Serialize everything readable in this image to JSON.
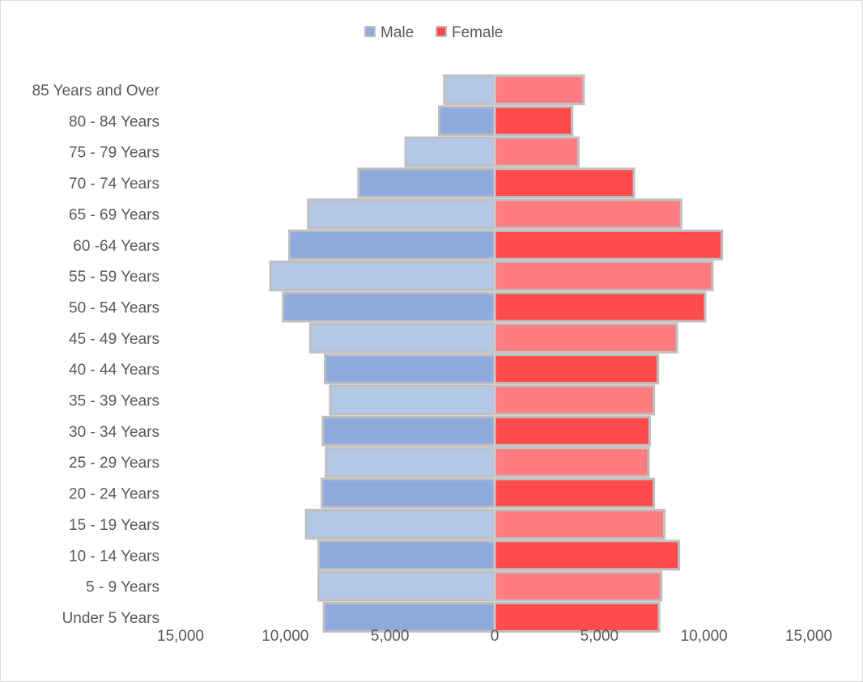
{
  "chart_data": {
    "type": "bar",
    "orientation": "horizontal",
    "categories": [
      "85 Years and Over",
      "80 - 84 Years",
      "75 - 79 Years",
      "70 - 74 Years",
      "65 - 69 Years",
      "60 -64 Years",
      "55 - 59 Years",
      "50 - 54 Years",
      "45 - 49 Years",
      "40 - 44 Years",
      "35 - 39 Years",
      "30 - 34 Years",
      "25 - 29 Years",
      "20 - 24 Years",
      "15 - 19 Years",
      "10 - 14 Years",
      "5 - 9 Years",
      "Under 5 Years"
    ],
    "series": [
      {
        "name": "Male",
        "color": "#8faadc",
        "alt_color": "#b4c7e7",
        "values": [
          2400,
          2650,
          4250,
          6500,
          8900,
          9800,
          10700,
          10100,
          8800,
          8100,
          7850,
          8200,
          8050,
          8250,
          9000,
          8400,
          8400,
          8150
        ]
      },
      {
        "name": "Female",
        "color": "#ff4b4b",
        "alt_color": "#ff7c80",
        "values": [
          4250,
          3700,
          4000,
          6650,
          8900,
          10850,
          10400,
          10050,
          8700,
          7800,
          7600,
          7400,
          7350,
          7600,
          8100,
          8800,
          7950,
          7850
        ]
      }
    ],
    "xaxis": {
      "range": [
        -15000,
        15000
      ],
      "ticks": [
        -15000,
        -10000,
        -5000,
        0,
        5000,
        10000,
        15000
      ],
      "tick_labels": [
        "15,000",
        "10,000",
        "5,000",
        "0",
        "5,000",
        "10,000",
        "15,000"
      ]
    },
    "title": "",
    "xlabel": "",
    "ylabel": "",
    "legend": "top-center",
    "grid": false
  }
}
